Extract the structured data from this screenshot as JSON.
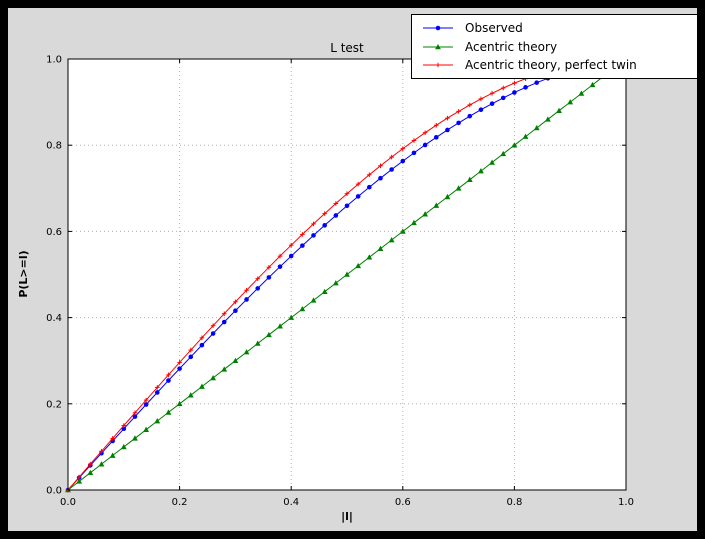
{
  "colors": {
    "frame_bg": "#000000",
    "figure_bg": "#d9d9d9",
    "axes_bg": "#ffffff",
    "axes_border": "#000000",
    "grid": "#b0b0b0",
    "observed": "#0000ff",
    "acentric_theory": "#008000",
    "perfect_twin": "#ff0000"
  },
  "chart_data": {
    "type": "line",
    "title": "L test",
    "xlabel": "|l|",
    "ylabel": "P(L>=l)",
    "xlim": [
      0.0,
      1.0
    ],
    "ylim": [
      0.0,
      1.0
    ],
    "xticks": [
      "0.0",
      "0.2",
      "0.4",
      "0.6",
      "0.8",
      "1.0"
    ],
    "yticks": [
      "0.0",
      "0.2",
      "0.4",
      "0.6",
      "0.8",
      "1.0"
    ],
    "grid": true,
    "grid_style": "dotted",
    "legend_position": "upper right",
    "series": [
      {
        "name": "Observed",
        "color": "#0000ff",
        "marker": "circle",
        "x": [
          0.0,
          0.02,
          0.04,
          0.06,
          0.08,
          0.1,
          0.12,
          0.14,
          0.16,
          0.18,
          0.2,
          0.22,
          0.24,
          0.26,
          0.28,
          0.3,
          0.32,
          0.34,
          0.36,
          0.38,
          0.4,
          0.42,
          0.44,
          0.46,
          0.48,
          0.5,
          0.52,
          0.54,
          0.56,
          0.58,
          0.6,
          0.62,
          0.64,
          0.66,
          0.68,
          0.7,
          0.72,
          0.74,
          0.76,
          0.78,
          0.8,
          0.82,
          0.84,
          0.86
        ],
        "y": [
          0.0,
          0.0285,
          0.057,
          0.0854,
          0.1138,
          0.1421,
          0.1703,
          0.1983,
          0.2263,
          0.254,
          0.2816,
          0.309,
          0.3361,
          0.363,
          0.3897,
          0.416,
          0.4421,
          0.4678,
          0.4932,
          0.5182,
          0.5428,
          0.567,
          0.5908,
          0.6141,
          0.637,
          0.6594,
          0.6812,
          0.7026,
          0.7234,
          0.7436,
          0.7632,
          0.7822,
          0.8006,
          0.8183,
          0.8354,
          0.8517,
          0.8674,
          0.8823,
          0.8964,
          0.9098,
          0.9224,
          0.9342,
          0.9451,
          0.9552
        ]
      },
      {
        "name": "Acentric theory",
        "color": "#008000",
        "marker": "triangle",
        "x": [
          0.0,
          0.02,
          0.04,
          0.06,
          0.08,
          0.1,
          0.12,
          0.14,
          0.16,
          0.18,
          0.2,
          0.22,
          0.24,
          0.26,
          0.28,
          0.3,
          0.32,
          0.34,
          0.36,
          0.38,
          0.4,
          0.42,
          0.44,
          0.46,
          0.48,
          0.5,
          0.52,
          0.54,
          0.56,
          0.58,
          0.6,
          0.62,
          0.64,
          0.66,
          0.68,
          0.7,
          0.72,
          0.74,
          0.76,
          0.78,
          0.8,
          0.82,
          0.84,
          0.86,
          0.88,
          0.9,
          0.92,
          0.94,
          0.96
        ],
        "y": [
          0.0,
          0.02,
          0.04,
          0.06,
          0.08,
          0.1,
          0.12,
          0.14,
          0.16,
          0.18,
          0.2,
          0.22,
          0.24,
          0.26,
          0.28,
          0.3,
          0.32,
          0.34,
          0.36,
          0.38,
          0.4,
          0.42,
          0.44,
          0.46,
          0.48,
          0.5,
          0.52,
          0.54,
          0.56,
          0.58,
          0.6,
          0.62,
          0.64,
          0.66,
          0.68,
          0.7,
          0.72,
          0.74,
          0.76,
          0.78,
          0.8,
          0.82,
          0.84,
          0.86,
          0.88,
          0.9,
          0.92,
          0.94,
          0.96
        ]
      },
      {
        "name": "Acentric theory, perfect twin",
        "color": "#ff0000",
        "marker": "plus",
        "x": [
          0.0,
          0.02,
          0.04,
          0.06,
          0.08,
          0.1,
          0.12,
          0.14,
          0.16,
          0.18,
          0.2,
          0.22,
          0.24,
          0.26,
          0.28,
          0.3,
          0.32,
          0.34,
          0.36,
          0.38,
          0.4,
          0.42,
          0.44,
          0.46,
          0.48,
          0.5,
          0.52,
          0.54,
          0.56,
          0.58,
          0.6,
          0.62,
          0.64,
          0.66,
          0.68,
          0.7,
          0.72,
          0.74,
          0.76,
          0.78,
          0.8,
          0.82,
          0.84
        ],
        "y": [
          0.0,
          0.03,
          0.06,
          0.0899,
          0.1197,
          0.1495,
          0.1791,
          0.2086,
          0.238,
          0.2671,
          0.296,
          0.3247,
          0.3531,
          0.3812,
          0.409,
          0.4365,
          0.4636,
          0.4903,
          0.5167,
          0.5426,
          0.568,
          0.593,
          0.6174,
          0.6413,
          0.6647,
          0.6875,
          0.7097,
          0.7313,
          0.7522,
          0.7724,
          0.792,
          0.8108,
          0.8289,
          0.8463,
          0.8628,
          0.8785,
          0.8934,
          0.9074,
          0.9205,
          0.9327,
          0.944,
          0.9543,
          0.9637
        ]
      }
    ]
  }
}
